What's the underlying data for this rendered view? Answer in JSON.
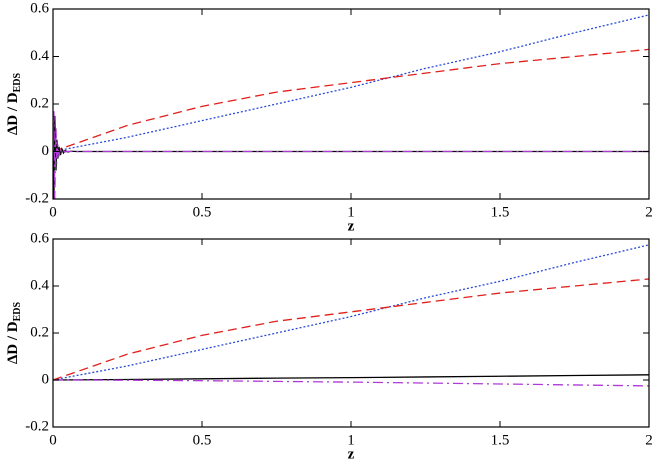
{
  "chart_data": [
    {
      "type": "line",
      "xlabel": "z",
      "ylabel": "ΔD / D",
      "ylabel_sub": "EDS",
      "xlim": [
        0,
        2
      ],
      "ylim": [
        -0.2,
        0.6
      ],
      "xticks": [
        0,
        0.5,
        1,
        1.5,
        2
      ],
      "yticks": [
        -0.2,
        0,
        0.2,
        0.4,
        0.6
      ],
      "x": [
        0,
        0.25,
        0.5,
        0.75,
        1,
        1.25,
        1.5,
        1.75,
        2
      ],
      "series": [
        {
          "color": "#2a4bd7",
          "dash": "2,2",
          "values": [
            0,
            0.06,
            0.13,
            0.2,
            0.27,
            0.35,
            0.42,
            0.5,
            0.575
          ]
        },
        {
          "color": "#e0201b",
          "dash": "9,5",
          "values": [
            0,
            0.11,
            0.19,
            0.25,
            0.29,
            0.33,
            0.37,
            0.4,
            0.43
          ]
        },
        {
          "color": "#000000",
          "dash": "none",
          "x": [
            0,
            0.003,
            0.006,
            0.01,
            0.013,
            0.016,
            0.02,
            0.025,
            0.03,
            0.035,
            0.04,
            0.05,
            0.06,
            0.08,
            2
          ],
          "values": [
            0,
            -0.2,
            0.15,
            -0.08,
            0.05,
            -0.03,
            0.02,
            -0.015,
            0.01,
            -0.006,
            0.004,
            -0.002,
            0.001,
            0,
            0
          ]
        },
        {
          "color": "#b03ad8",
          "dash": "10,4,2,4",
          "x": [
            0,
            0.003,
            0.006,
            0.01,
            0.013,
            0.016,
            0.02,
            0.025,
            0.03,
            0.035,
            0.04,
            0.05,
            0.06,
            0.08,
            2
          ],
          "values": [
            0,
            0.17,
            -0.2,
            0.1,
            -0.05,
            0.03,
            -0.02,
            0.01,
            -0.006,
            0.004,
            -0.002,
            0.001,
            0,
            0,
            0
          ]
        }
      ]
    },
    {
      "type": "line",
      "xlabel": "z",
      "ylabel": "ΔD / D",
      "ylabel_sub": "EDS",
      "xlim": [
        0,
        2
      ],
      "ylim": [
        -0.2,
        0.6
      ],
      "xticks": [
        0,
        0.5,
        1,
        1.5,
        2
      ],
      "yticks": [
        -0.2,
        0,
        0.2,
        0.4,
        0.6
      ],
      "x": [
        0,
        0.25,
        0.5,
        0.75,
        1,
        1.25,
        1.5,
        1.75,
        2
      ],
      "series": [
        {
          "color": "#2a4bd7",
          "dash": "2,2",
          "values": [
            0,
            0.06,
            0.13,
            0.2,
            0.27,
            0.35,
            0.42,
            0.5,
            0.575
          ]
        },
        {
          "color": "#e0201b",
          "dash": "9,5",
          "values": [
            0,
            0.11,
            0.19,
            0.25,
            0.29,
            0.33,
            0.37,
            0.4,
            0.43
          ]
        },
        {
          "color": "#000000",
          "dash": "none",
          "values": [
            0,
            0.002,
            0.005,
            0.008,
            0.01,
            0.013,
            0.016,
            0.019,
            0.022
          ]
        },
        {
          "color": "#b03ad8",
          "dash": "10,4,2,4",
          "values": [
            0,
            -0.001,
            -0.003,
            -0.006,
            -0.009,
            -0.013,
            -0.017,
            -0.021,
            -0.025
          ]
        }
      ]
    }
  ]
}
